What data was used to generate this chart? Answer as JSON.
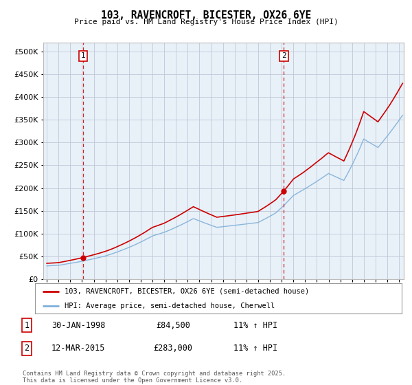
{
  "title": "103, RAVENCROFT, BICESTER, OX26 6YE",
  "subtitle": "Price paid vs. HM Land Registry's House Price Index (HPI)",
  "ylim": [
    0,
    520000
  ],
  "yticks": [
    0,
    50000,
    100000,
    150000,
    200000,
    250000,
    300000,
    350000,
    400000,
    450000,
    500000
  ],
  "xlim_start": 1994.7,
  "xlim_end": 2025.4,
  "marker1_x": 1998.08,
  "marker1_y": 84500,
  "marker2_x": 2015.19,
  "marker2_y": 283000,
  "marker1_label": "1",
  "marker2_label": "2",
  "marker1_date": "30-JAN-1998",
  "marker1_price": "£84,500",
  "marker1_hpi": "11% ↑ HPI",
  "marker2_date": "12-MAR-2015",
  "marker2_price": "£283,000",
  "marker2_hpi": "11% ↑ HPI",
  "legend_line1": "103, RAVENCROFT, BICESTER, OX26 6YE (semi-detached house)",
  "legend_line2": "HPI: Average price, semi-detached house, Cherwell",
  "footer": "Contains HM Land Registry data © Crown copyright and database right 2025.\nThis data is licensed under the Open Government Licence v3.0.",
  "line_color_red": "#cc0000",
  "line_color_blue": "#7fb0d8",
  "dashed_line_color": "#cc0000",
  "chart_bg_color": "#e8f0f8",
  "background_color": "#ffffff",
  "grid_color": "#c0c8d8"
}
